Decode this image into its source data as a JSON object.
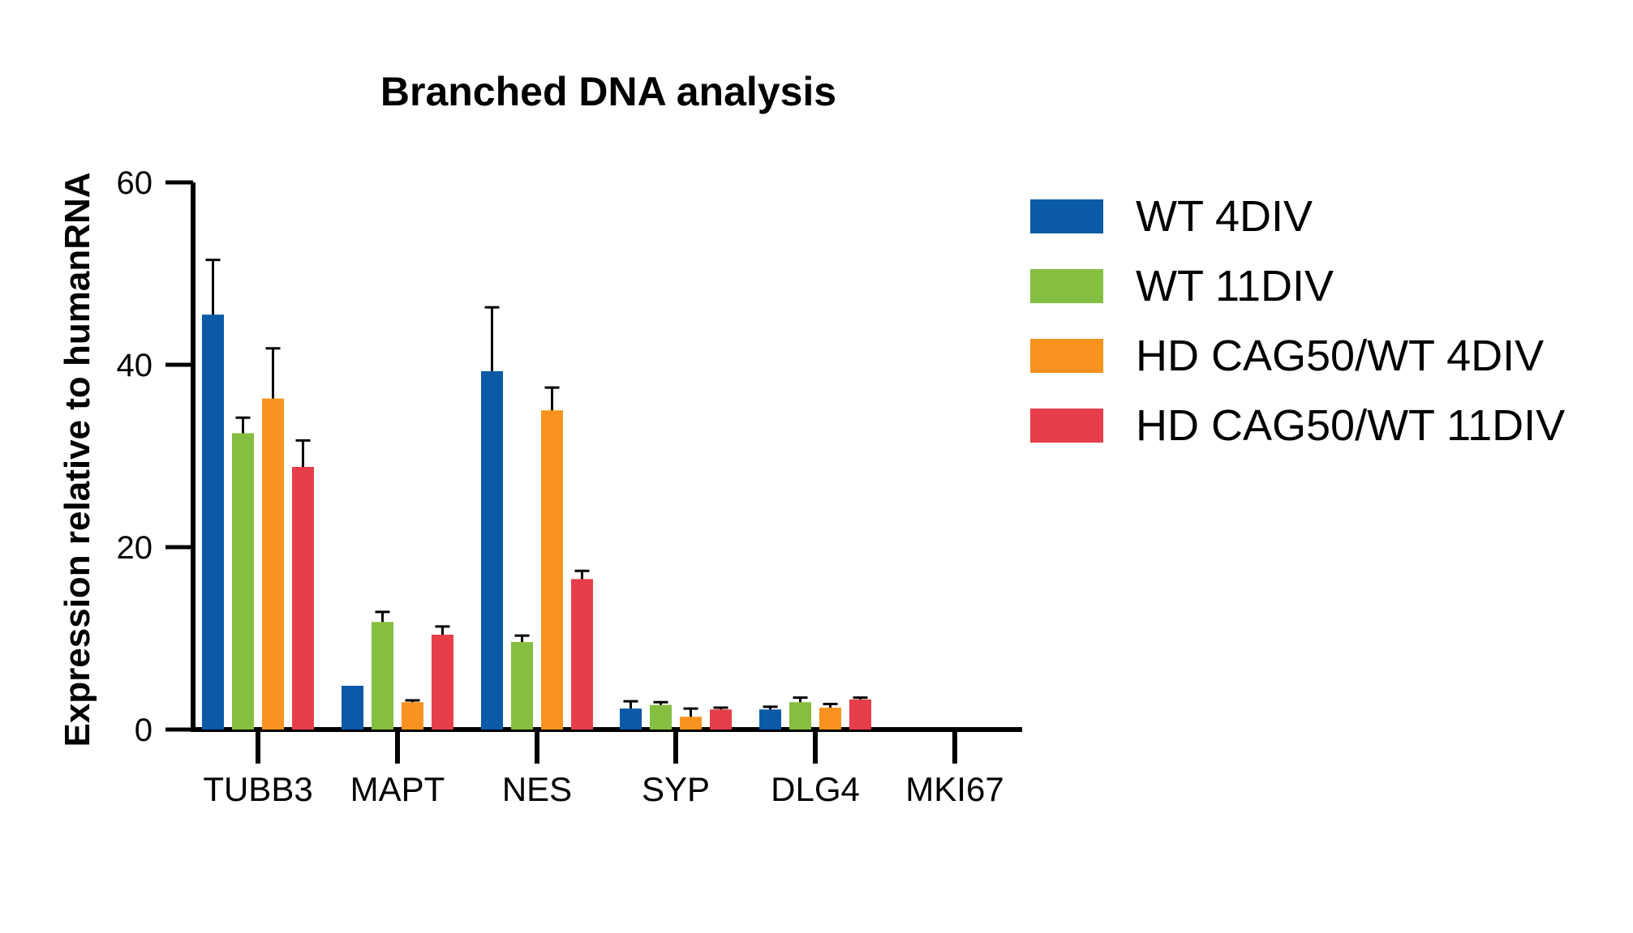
{
  "chart_data": {
    "type": "bar",
    "title": "Branched DNA analysis",
    "xlabel": "",
    "ylabel": "Expression relative to humanRNA",
    "ylim": [
      0,
      60
    ],
    "yticks": [
      0,
      20,
      40,
      60
    ],
    "categories": [
      "TUBB3",
      "MAPT",
      "NES",
      "SYP",
      "DLG4",
      "MKI67"
    ],
    "series": [
      {
        "name": "WT 4DIV",
        "color": "#0a5aa8",
        "values": [
          45.5,
          4.8,
          39.3,
          2.3,
          2.2,
          0
        ],
        "errors": [
          6.0,
          0,
          7.0,
          0.8,
          0.3,
          0
        ]
      },
      {
        "name": "WT 11DIV",
        "color": "#85bf41",
        "values": [
          32.5,
          11.8,
          9.6,
          2.7,
          3.0,
          0
        ],
        "errors": [
          1.7,
          1.1,
          0.7,
          0.3,
          0.5,
          0
        ]
      },
      {
        "name": "HD CAG50/WT 4DIV",
        "color": "#f7931e",
        "values": [
          36.3,
          3.0,
          35.0,
          1.4,
          2.4,
          0
        ],
        "errors": [
          5.5,
          0.2,
          2.5,
          0.9,
          0.4,
          0
        ]
      },
      {
        "name": "HD CAG50/WT 11DIV",
        "color": "#e63e4a",
        "values": [
          28.8,
          10.4,
          16.5,
          2.2,
          3.3,
          0
        ],
        "errors": [
          2.9,
          0.9,
          0.9,
          0.2,
          0.2,
          0
        ]
      }
    ],
    "error_bars": "positive",
    "legend_position": "right",
    "grid": false
  }
}
